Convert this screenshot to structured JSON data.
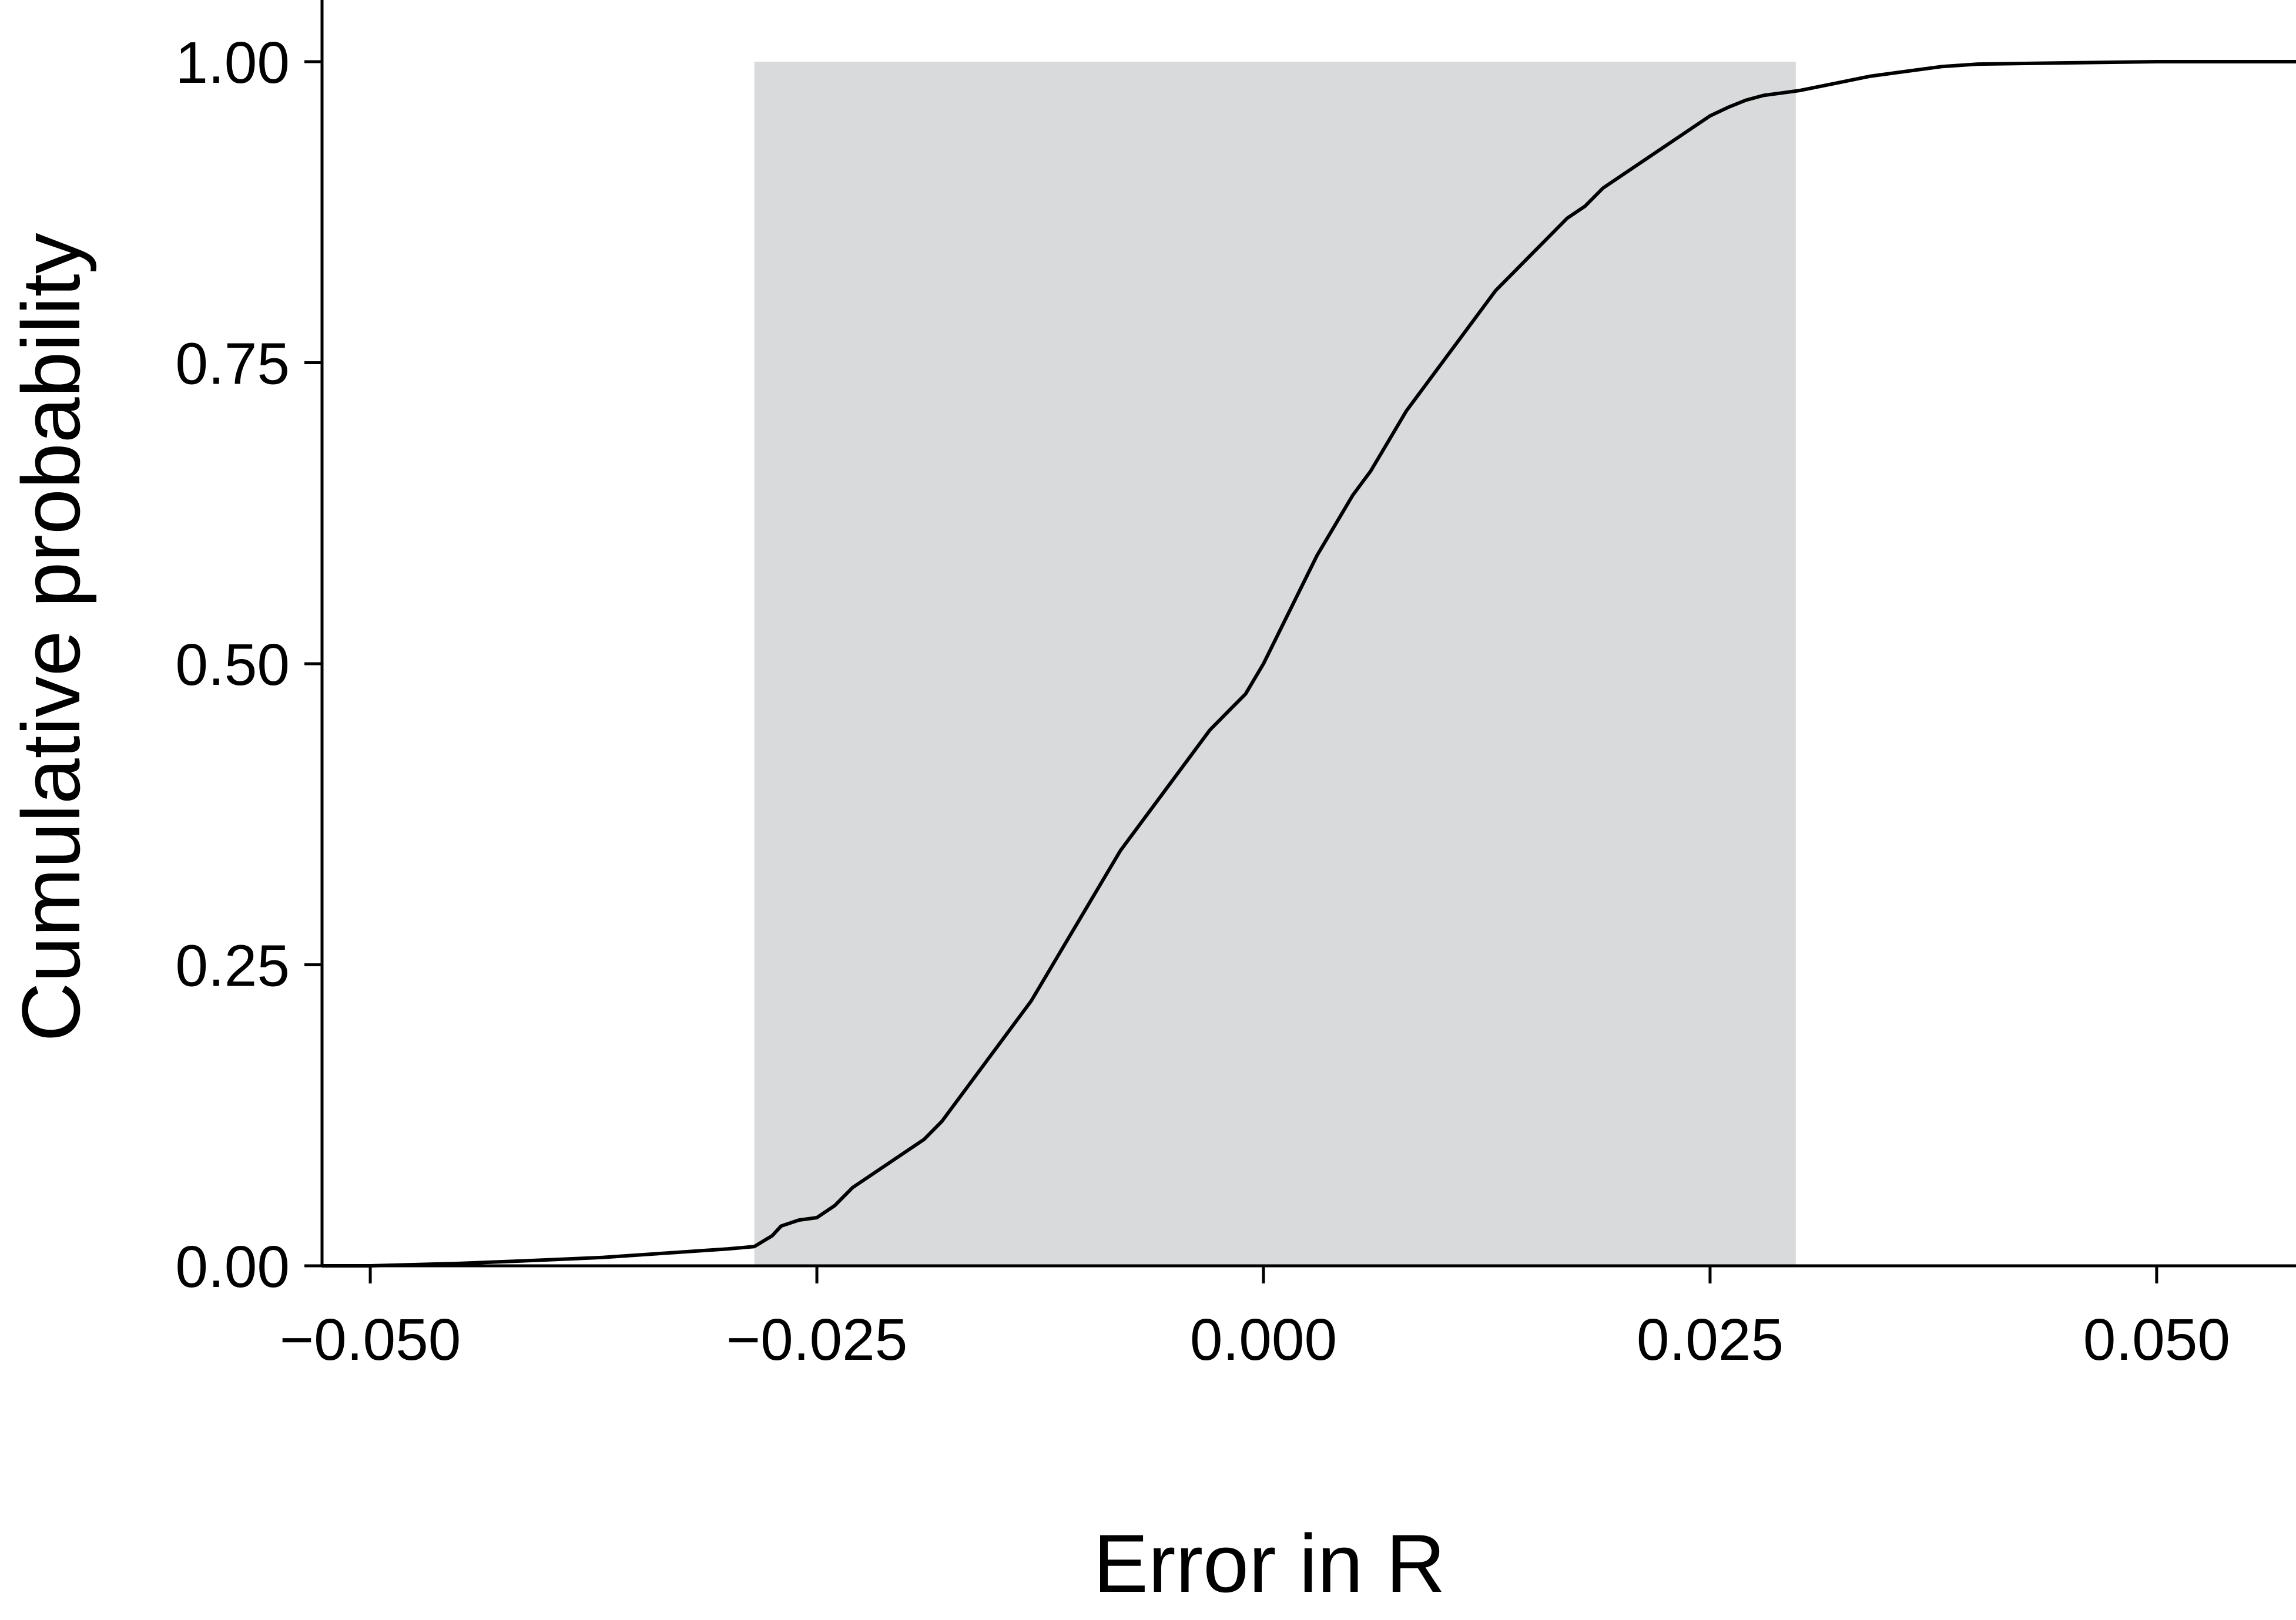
{
  "chart_data": {
    "type": "line",
    "title": "",
    "xlabel": "Error in R",
    "ylabel": "Cumulative probability",
    "xlim": [
      -0.0527,
      0.0578
    ],
    "ylim": [
      0,
      1
    ],
    "x_ticks": [
      -0.05,
      -0.025,
      0.0,
      0.025,
      0.05
    ],
    "x_tick_labels": [
      "−0.050",
      "−0.025",
      "0.000",
      "0.025",
      "0.050"
    ],
    "y_ticks": [
      0,
      0.25,
      0.5,
      0.75,
      1.0
    ],
    "y_tick_labels": [
      "0.00",
      "0.25",
      "0.50",
      "0.75",
      "1.00"
    ],
    "grid": false,
    "legend": "none",
    "shaded_region": {
      "x": [
        -0.0285,
        0.0298
      ],
      "y": [
        0,
        1
      ],
      "color": "#d9dadc"
    },
    "line_color": "#000000",
    "series": [
      {
        "x": [
          -0.0527,
          -0.05,
          -0.045,
          -0.04,
          -0.037,
          -0.035,
          -0.032,
          -0.03,
          -0.0285,
          -0.0275,
          -0.027,
          -0.026,
          -0.025,
          -0.024,
          -0.023,
          -0.022,
          -0.021,
          -0.02,
          -0.019,
          -0.018,
          -0.017,
          -0.016,
          -0.015,
          -0.014,
          -0.013,
          -0.012,
          -0.011,
          -0.01,
          -0.009,
          -0.008,
          -0.007,
          -0.006,
          -0.005,
          -0.004,
          -0.003,
          -0.002,
          -0.001,
          0.0,
          0.001,
          0.002,
          0.003,
          0.004,
          0.005,
          0.006,
          0.007,
          0.008,
          0.009,
          0.01,
          0.011,
          0.012,
          0.013,
          0.014,
          0.015,
          0.016,
          0.017,
          0.018,
          0.019,
          0.02,
          0.021,
          0.022,
          0.023,
          0.024,
          0.025,
          0.026,
          0.027,
          0.028,
          0.029,
          0.03,
          0.032,
          0.034,
          0.036,
          0.038,
          0.04,
          0.045,
          0.05,
          0.0578
        ],
        "y": [
          0.0,
          0.0,
          0.002,
          0.005,
          0.007,
          0.009,
          0.012,
          0.014,
          0.016,
          0.025,
          0.033,
          0.038,
          0.04,
          0.05,
          0.065,
          0.075,
          0.085,
          0.095,
          0.105,
          0.12,
          0.14,
          0.16,
          0.18,
          0.2,
          0.22,
          0.245,
          0.27,
          0.295,
          0.32,
          0.345,
          0.365,
          0.385,
          0.405,
          0.425,
          0.445,
          0.46,
          0.475,
          0.5,
          0.53,
          0.56,
          0.59,
          0.615,
          0.64,
          0.66,
          0.685,
          0.71,
          0.73,
          0.75,
          0.77,
          0.79,
          0.81,
          0.825,
          0.84,
          0.855,
          0.87,
          0.88,
          0.895,
          0.905,
          0.915,
          0.925,
          0.935,
          0.945,
          0.955,
          0.962,
          0.968,
          0.972,
          0.974,
          0.976,
          0.982,
          0.988,
          0.992,
          0.996,
          0.998,
          0.999,
          1.0,
          1.0
        ]
      }
    ]
  }
}
